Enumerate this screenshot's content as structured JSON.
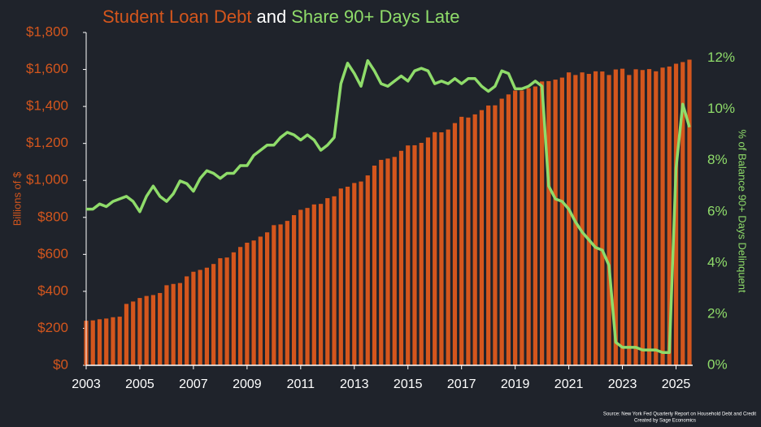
{
  "chart_data": {
    "type": "bar_line",
    "title": [
      "Student Loan Debt",
      "and",
      "Share 90+ Days Late"
    ],
    "title_colors": [
      "#d4561d",
      "#ffffff",
      "#8fdc6a"
    ],
    "ylabel": "Billions of $",
    "y2label": "% of Balance 90+ Days Delinquent",
    "source": [
      "Source: New York Fed Quarterly Report on Household Debt and Credit",
      "Created by Sage Economics"
    ],
    "categories": [
      "2003",
      null,
      null,
      null,
      null,
      null,
      null,
      null,
      "2005",
      null,
      null,
      null,
      null,
      null,
      null,
      null,
      "2007",
      null,
      null,
      null,
      null,
      null,
      null,
      null,
      "2009",
      null,
      null,
      null,
      null,
      null,
      null,
      null,
      "2011",
      null,
      null,
      null,
      null,
      null,
      null,
      null,
      "2013",
      null,
      null,
      null,
      null,
      null,
      null,
      null,
      "2015",
      null,
      null,
      null,
      null,
      null,
      null,
      null,
      "2017",
      null,
      null,
      null,
      null,
      null,
      null,
      null,
      "2019",
      null,
      null,
      null,
      null,
      null,
      null,
      null,
      "2021",
      null,
      null,
      null,
      null,
      null,
      null,
      null,
      "2023",
      null,
      null,
      null,
      null,
      null,
      null,
      null,
      "2025",
      null,
      null
    ],
    "series": [
      {
        "name": "Student Loan Debt",
        "color": "#d4561d",
        "axis": "y",
        "values": [
          241,
          243,
          249,
          253,
          260,
          263,
          332,
          345,
          364,
          375,
          380,
          391,
          433,
          440,
          445,
          481,
          506,
          516,
          528,
          548,
          579,
          583,
          611,
          640,
          663,
          675,
          696,
          719,
          758,
          762,
          781,
          812,
          841,
          851,
          870,
          873,
          904,
          914,
          956,
          966,
          986,
          994,
          1027,
          1080,
          1111,
          1118,
          1127,
          1160,
          1189,
          1190,
          1203,
          1232,
          1261,
          1260,
          1275,
          1310,
          1344,
          1340,
          1357,
          1380,
          1405,
          1406,
          1442,
          1465,
          1486,
          1486,
          1499,
          1508,
          1535,
          1537,
          1545,
          1556,
          1584,
          1570,
          1584,
          1576,
          1590,
          1589,
          1570,
          1600,
          1604,
          1570,
          1601,
          1597,
          1602,
          1590,
          1610,
          1616,
          1631,
          1640,
          1653
        ]
      },
      {
        "name": "Share 90+ Days Late",
        "color": "#8fdc6a",
        "axis": "y2",
        "values": [
          6.1,
          6.1,
          6.3,
          6.2,
          6.4,
          6.5,
          6.6,
          6.4,
          6.0,
          6.6,
          7.0,
          6.6,
          6.4,
          6.7,
          7.2,
          7.1,
          6.8,
          7.3,
          7.6,
          7.5,
          7.3,
          7.5,
          7.5,
          7.8,
          7.8,
          8.2,
          8.4,
          8.6,
          8.6,
          8.9,
          9.1,
          9.0,
          8.8,
          9.0,
          8.8,
          8.4,
          8.6,
          8.9,
          11.0,
          11.8,
          11.4,
          10.9,
          11.9,
          11.5,
          11.0,
          10.9,
          11.1,
          11.3,
          11.1,
          11.5,
          11.6,
          11.5,
          11.0,
          11.1,
          11.0,
          11.2,
          11.0,
          11.2,
          11.2,
          10.9,
          10.7,
          10.9,
          11.5,
          11.4,
          10.8,
          10.8,
          10.9,
          11.1,
          10.9,
          7.0,
          6.5,
          6.4,
          6.1,
          5.6,
          5.2,
          4.9,
          4.6,
          4.5,
          3.9,
          0.9,
          0.7,
          0.7,
          0.7,
          0.6,
          0.6,
          0.6,
          0.5,
          0.5,
          7.7,
          10.2,
          9.3
        ]
      }
    ],
    "ylim": [
      0,
      1800
    ],
    "yticks": [
      {
        "value": 0,
        "label": "$0"
      },
      {
        "value": 200,
        "label": "$200"
      },
      {
        "value": 400,
        "label": "$400"
      },
      {
        "value": 600,
        "label": "$600"
      },
      {
        "value": 800,
        "label": "$800"
      },
      {
        "value": 1000,
        "label": "$1,000"
      },
      {
        "value": 1200,
        "label": "$1,200"
      },
      {
        "value": 1400,
        "label": "$1,400"
      },
      {
        "value": 1600,
        "label": "$1,600"
      },
      {
        "value": 1800,
        "label": "$1,800"
      }
    ],
    "y2lim": [
      0,
      13
    ],
    "y2ticks": [
      {
        "value": 0,
        "label": "0%"
      },
      {
        "value": 2,
        "label": "2%"
      },
      {
        "value": 4,
        "label": "4%"
      },
      {
        "value": 6,
        "label": "6%"
      },
      {
        "value": 8,
        "label": "8%"
      },
      {
        "value": 10,
        "label": "10%"
      },
      {
        "value": 12,
        "label": "12%"
      }
    ]
  }
}
